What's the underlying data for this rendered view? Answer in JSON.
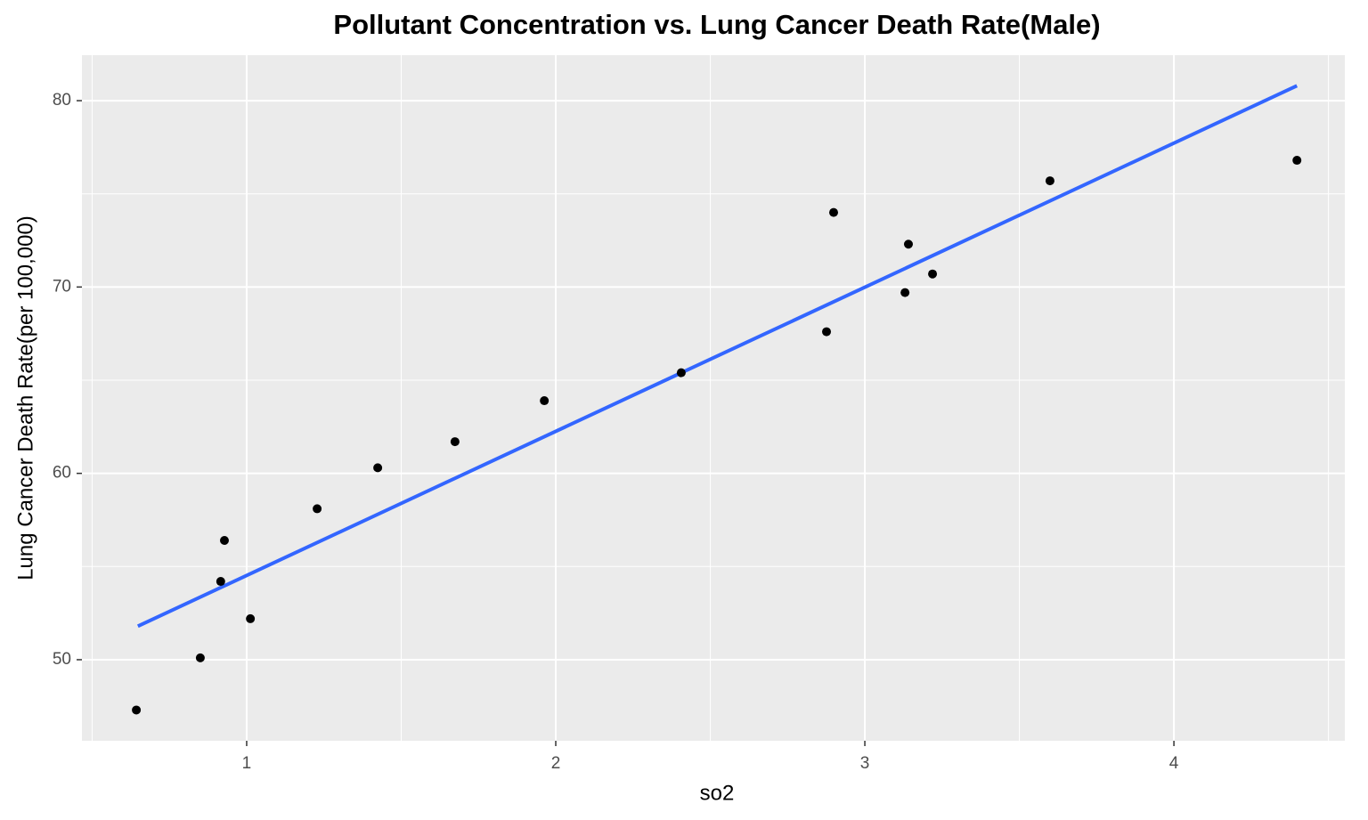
{
  "chart_data": {
    "type": "scatter",
    "title": "Pollutant Concentration vs. Lung Cancer Death Rate(Male)",
    "x_label": "so2",
    "y_label": "Lung Cancer Death Rate(per 100,000)",
    "x": [
      0.643,
      0.85,
      0.916,
      0.928,
      1.012,
      1.228,
      1.424,
      1.674,
      1.963,
      2.406,
      2.876,
      2.899,
      3.13,
      3.141,
      3.219,
      3.599,
      4.398
    ],
    "values": [
      47.3,
      50.1,
      54.2,
      56.4,
      52.2,
      58.1,
      60.3,
      61.7,
      63.9,
      65.4,
      67.6,
      74.0,
      69.7,
      72.3,
      70.7,
      75.7,
      76.8
    ],
    "color": "#000000",
    "trend": {
      "x": [
        0.648,
        4.398
      ],
      "values": [
        51.8,
        80.8
      ],
      "color": "#3366ff"
    },
    "xlim": [
      0.467,
      4.553
    ],
    "ylim": [
      45.65,
      82.44
    ],
    "xticks": [
      1,
      2,
      3,
      4
    ],
    "yticks": [
      50,
      60,
      70,
      80
    ],
    "xminor": [
      0.5,
      1.5,
      2.5,
      3.5,
      4.5
    ],
    "yminor": [
      55,
      65,
      75
    ],
    "grid": true
  }
}
